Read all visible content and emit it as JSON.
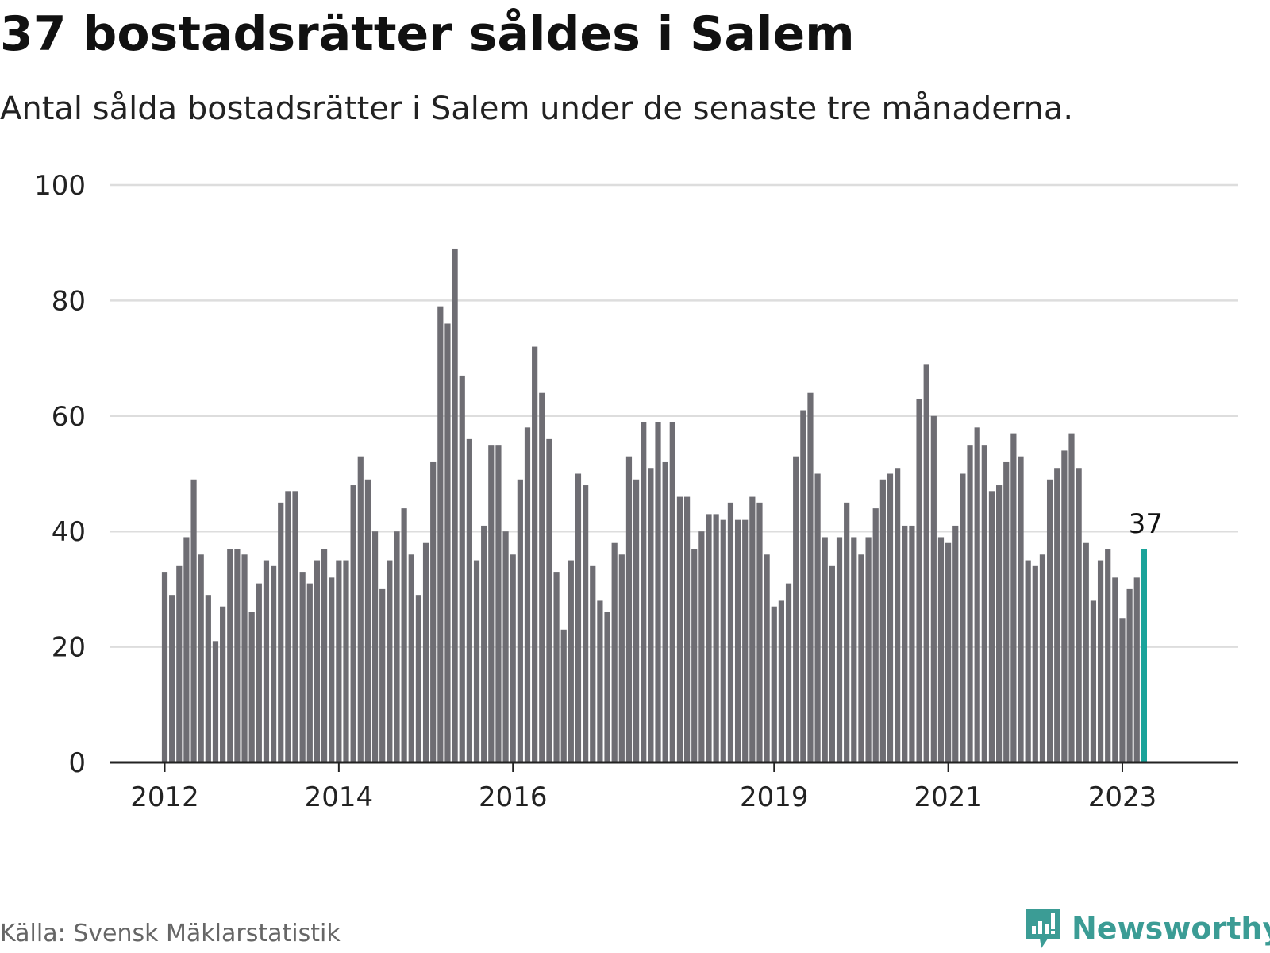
{
  "header": {
    "title": "37 bostadsrätter såldes i Salem",
    "subtitle": "Antal sålda bostadsrätter i Salem under de senaste tre månaderna."
  },
  "footer": {
    "source": "Källa: Svensk Mäklarstatistik",
    "brand": "Newsworthy"
  },
  "colors": {
    "bar": "#6e6d73",
    "highlight": "#1aa39a",
    "grid": "#dddddd",
    "axis": "#222222",
    "text": "#222222",
    "brand": "#3b9c95"
  },
  "icons": {
    "brand_logo": "bar-chart-speech-bubble-icon"
  },
  "chart_data": {
    "type": "bar",
    "title": "37 bostadsrätter såldes i Salem",
    "subtitle": "Antal sålda bostadsrätter i Salem under de senaste tre månaderna.",
    "xlabel": "",
    "ylabel": "",
    "ylim": [
      0,
      100
    ],
    "yticks": [
      0,
      20,
      40,
      60,
      80,
      100
    ],
    "grid": true,
    "xtick_labels": [
      {
        "label": "2012",
        "index": 0
      },
      {
        "label": "2014",
        "index": 24
      },
      {
        "label": "2016",
        "index": 48
      },
      {
        "label": "2019",
        "index": 84
      },
      {
        "label": "2021",
        "index": 108
      },
      {
        "label": "2023",
        "index": 132
      }
    ],
    "highlight_index": 135,
    "highlight_label": "37",
    "values": [
      33,
      29,
      34,
      39,
      49,
      36,
      29,
      21,
      27,
      37,
      37,
      36,
      26,
      31,
      35,
      34,
      45,
      47,
      47,
      33,
      31,
      35,
      37,
      32,
      35,
      35,
      48,
      53,
      49,
      40,
      30,
      35,
      40,
      44,
      36,
      29,
      38,
      52,
      79,
      76,
      89,
      67,
      56,
      35,
      41,
      55,
      55,
      40,
      36,
      49,
      58,
      72,
      64,
      56,
      33,
      23,
      35,
      50,
      48,
      34,
      28,
      26,
      38,
      36,
      53,
      49,
      59,
      51,
      59,
      52,
      59,
      46,
      46,
      37,
      40,
      43,
      43,
      42,
      45,
      42,
      42,
      46,
      45,
      36,
      27,
      28,
      31,
      53,
      61,
      64,
      50,
      39,
      34,
      39,
      45,
      39,
      36,
      39,
      44,
      49,
      50,
      51,
      41,
      41,
      63,
      69,
      60,
      39,
      38,
      41,
      50,
      55,
      58,
      55,
      47,
      48,
      52,
      57,
      53,
      35,
      34,
      36,
      49,
      51,
      54,
      57,
      51,
      38,
      28,
      35,
      37,
      32,
      25,
      30,
      32,
      37
    ]
  }
}
